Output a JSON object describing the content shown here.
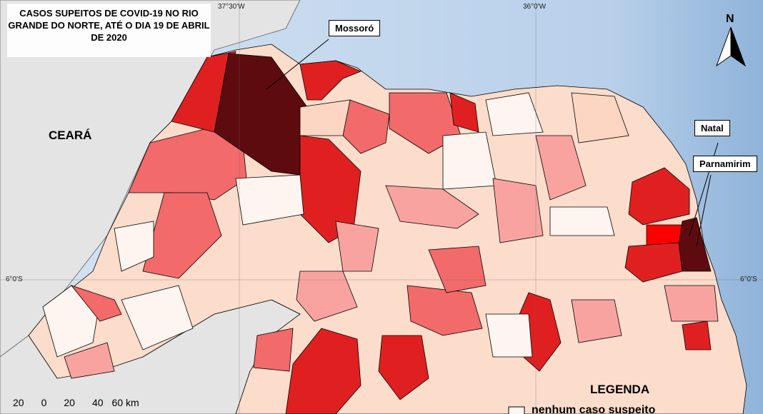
{
  "title": "CASOS SUPEITOS DE COVID-19 NO RIO GRANDE DO NORTE, ATÉ O DIA 19 DE ABRIL DE 2020",
  "graticule": {
    "longitudes": [
      "37°30'W",
      "36°0'W"
    ],
    "latitudes": [
      "6°0'S",
      "6°0'S"
    ]
  },
  "region_label": "CEARÁ",
  "city_labels": [
    "Mossoró",
    "Natal",
    "Parnamirim"
  ],
  "north_arrow": "N",
  "scale_bar": [
    "20",
    "0",
    "20",
    "40",
    "60",
    "km"
  ],
  "legend": {
    "title": "LEGENDA",
    "items": [
      "nenhum caso suspeito"
    ]
  }
}
